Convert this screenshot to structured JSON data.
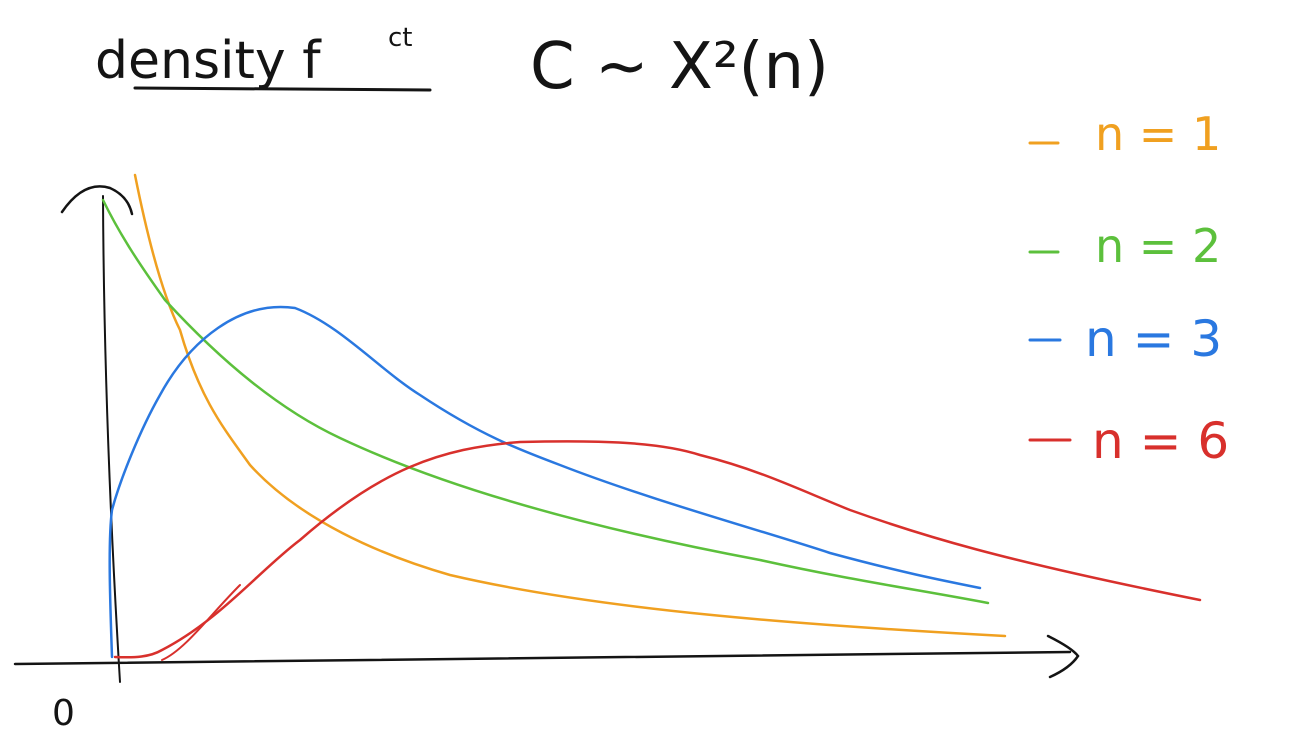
{
  "title": {
    "text": "density f",
    "superscript": "ct",
    "formula": "C ~ X²(n)"
  },
  "origin_label": "0",
  "colors": {
    "ink": "#141414",
    "n1": "#f0a020",
    "n2": "#5cc03c",
    "n3": "#2a78e0",
    "n6": "#d8302c"
  },
  "legend": [
    {
      "label": "n = 1",
      "color_key": "n1"
    },
    {
      "label": "n = 2",
      "color_key": "n2"
    },
    {
      "label": "n = 3",
      "color_key": "n3"
    },
    {
      "label": "n = 6",
      "color_key": "n6"
    }
  ],
  "curves": [
    {
      "name": "n = 1",
      "color_key": "n1",
      "shape": "decreasing-from-infinity"
    },
    {
      "name": "n = 2",
      "color_key": "n2",
      "shape": "decreasing-from-max"
    },
    {
      "name": "n = 3",
      "color_key": "n3",
      "shape": "early-peak"
    },
    {
      "name": "n = 6",
      "color_key": "n6",
      "shape": "late-peak"
    }
  ]
}
